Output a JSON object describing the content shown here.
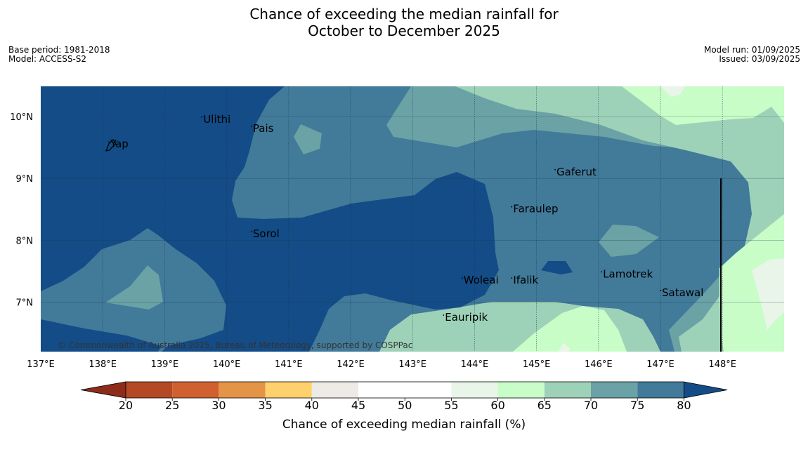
{
  "title_line1": "Chance of exceeding the median rainfall for",
  "title_line2": "October to December 2025",
  "base_period": "Base period: 1981-2018",
  "model": "Model: ACCESS-S2",
  "model_run": "Model run: 01/09/2025",
  "issued": "Issued: 03/09/2025",
  "copyright": "© Commonwealth of Australia 2025, Bureau of Meteorology, supported by COSPPac",
  "axes": {
    "lon_labels": [
      "137°E",
      "138°E",
      "139°E",
      "140°E",
      "141°E",
      "142°E",
      "143°E",
      "144°E",
      "145°E",
      "146°E",
      "147°E",
      "148°E"
    ],
    "lat_labels": [
      "10°N",
      "9°N",
      "8°N",
      "7°N"
    ]
  },
  "places": [
    {
      "name": "Ulithi",
      "lon": 139.6,
      "lat": 9.9
    },
    {
      "name": "Pais",
      "lon": 140.4,
      "lat": 9.75
    },
    {
      "name": "Yap",
      "lon": 138.1,
      "lat": 9.5
    },
    {
      "name": "Gaferut",
      "lon": 145.3,
      "lat": 9.05
    },
    {
      "name": "Faraulep",
      "lon": 144.6,
      "lat": 8.45
    },
    {
      "name": "Sorol",
      "lon": 140.4,
      "lat": 8.05
    },
    {
      "name": "Lamotrek",
      "lon": 146.05,
      "lat": 7.4
    },
    {
      "name": "Woleai",
      "lon": 143.8,
      "lat": 7.3
    },
    {
      "name": "Ifalik",
      "lon": 144.6,
      "lat": 7.3
    },
    {
      "name": "Satawal",
      "lon": 147.0,
      "lat": 7.1
    },
    {
      "name": "Eauripik",
      "lon": 143.5,
      "lat": 6.7
    }
  ],
  "colorbar": {
    "label": "Chance of exceeding median rainfall (%)",
    "ticks": [
      "20",
      "25",
      "30",
      "35",
      "40",
      "45",
      "50",
      "55",
      "60",
      "65",
      "70",
      "75",
      "80"
    ],
    "colors": [
      "#8e2c1a",
      "#b44a25",
      "#d06030",
      "#e49446",
      "#fed16d",
      "#eeeae6",
      "#ffffff",
      "#ffffff",
      "#e9f5e9",
      "#c8fdc8",
      "#9ed2b8",
      "#6ba2a5",
      "#427a9a",
      "#134c86"
    ]
  }
}
